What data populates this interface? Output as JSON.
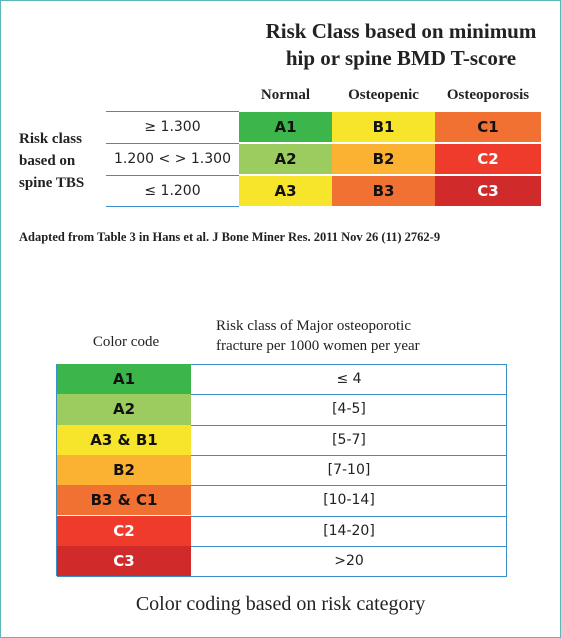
{
  "matrix": {
    "title_lines": [
      "Risk Class based on minimum",
      "hip or spine BMD T-score"
    ],
    "columns": [
      "Normal",
      "Osteopenic",
      "Osteoporosis"
    ],
    "row_header_lines": [
      "Risk class",
      "based on",
      "spine TBS"
    ],
    "rows": [
      {
        "label": "≥ 1.300",
        "cells": [
          {
            "text": "A1",
            "color": "#3cb54a"
          },
          {
            "text": "B1",
            "color": "#f7e52b"
          },
          {
            "text": "C1",
            "color": "#f07132"
          }
        ]
      },
      {
        "label": "1.200 < > 1.300",
        "cells": [
          {
            "text": "A2",
            "color": "#9ccb5f"
          },
          {
            "text": "B2",
            "color": "#fbb233"
          },
          {
            "text": "C2",
            "color": "#ef3b2c"
          }
        ]
      },
      {
        "label": "≤ 1.200",
        "cells": [
          {
            "text": "A3",
            "color": "#f7e52b"
          },
          {
            "text": "B3",
            "color": "#f07132"
          },
          {
            "text": "C3",
            "color": "#d12a2a"
          }
        ]
      }
    ]
  },
  "source": "Adapted from Table 3 in Hans et al. J Bone Miner Res. 2011 Nov 26 (11) 2762-9",
  "legend": {
    "headers": [
      "Color code",
      "Risk class of Major osteoporotic\nfracture per 1000 women per year"
    ],
    "rows": [
      {
        "code": "A1",
        "color": "#3cb54a",
        "range": "≤ 4"
      },
      {
        "code": "A2",
        "color": "#9ccb5f",
        "range": "[4-5]"
      },
      {
        "code": "A3 & B1",
        "color": "#f7e52b",
        "range": "[5-7]"
      },
      {
        "code": "B2",
        "color": "#fbb233",
        "range": "[7-10]"
      },
      {
        "code": "B3 & C1",
        "color": "#f07132",
        "range": "[10-14]"
      },
      {
        "code": "C2",
        "color": "#ef3b2c",
        "range": "[14-20]"
      },
      {
        "code": "C3",
        "color": "#d12a2a",
        "range": ">20"
      }
    ]
  },
  "caption": "Color coding based on risk category"
}
